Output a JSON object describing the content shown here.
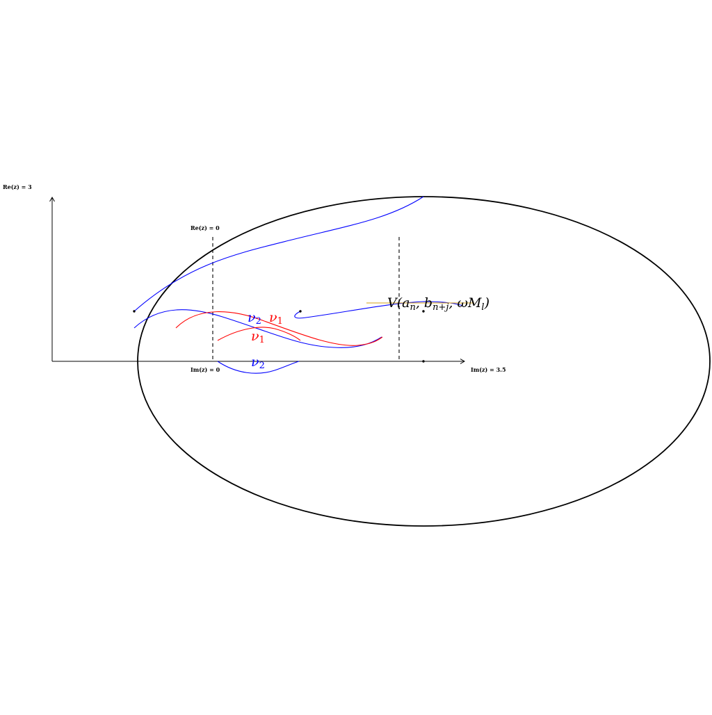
{
  "labels": {
    "re_axis_top": "Re(z) = 3",
    "re_dashed_top": "Re(z) = 0",
    "im_axis_origin": "Im(z) = 0",
    "im_axis_end": "Im(z) = 3.5",
    "nu2_a": "ν2",
    "nu1_a": "ν1",
    "nu1_b": "ν1",
    "nu2_b": "ν2",
    "v_label": "V(an, bn+j, ωMl)"
  },
  "colors": {
    "axis": "#000000",
    "blue_curve": "#0000ff",
    "red_curve": "#ff0000",
    "orange_line": "#d4a017"
  }
}
